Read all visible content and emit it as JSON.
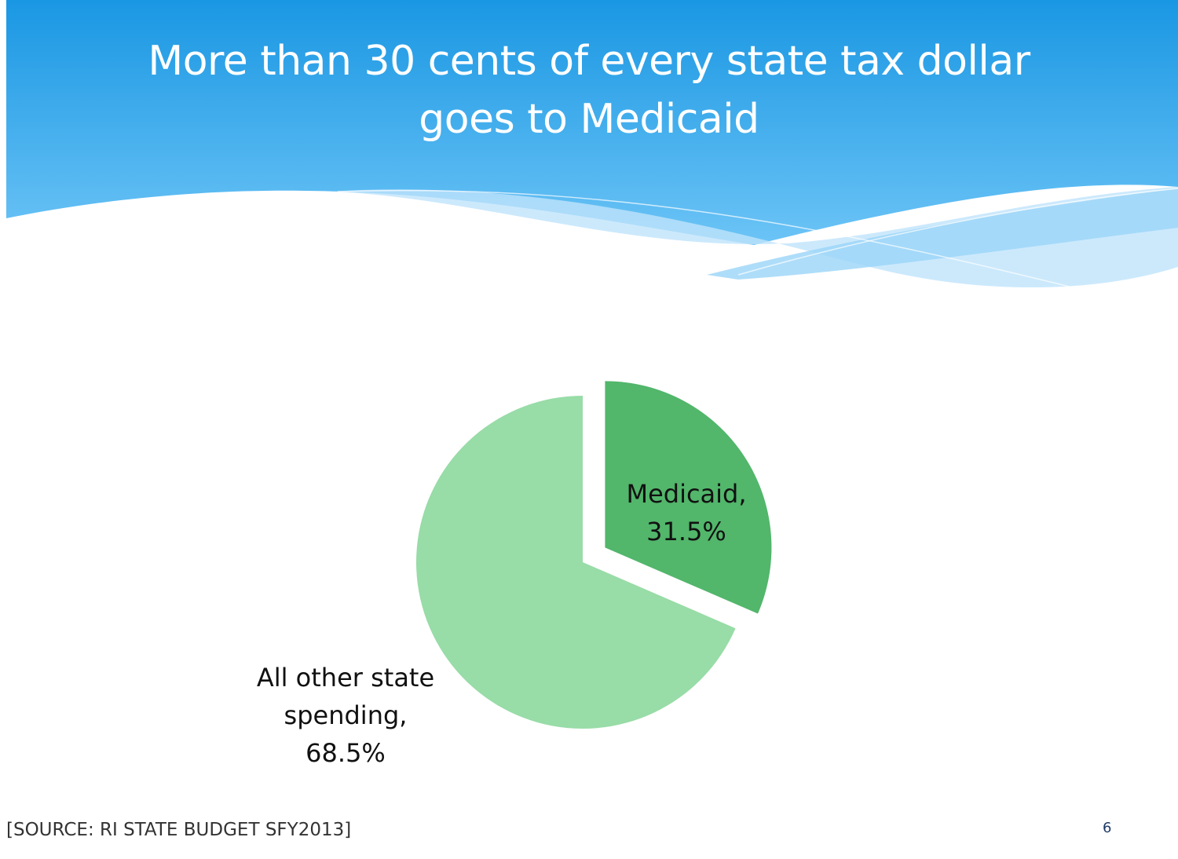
{
  "slide": {
    "title_lines": [
      "More than 30 cents of every state tax dollar",
      "goes to Medicaid"
    ],
    "source": "[SOURCE: RI STATE BUDGET SFY2013]",
    "page_number": "6"
  },
  "colors": {
    "header_top": "#1a97e3",
    "header_bottom": "#6cc4f6",
    "medicaid_slice": "#52b66b",
    "other_slice": "#98dca7"
  },
  "chart_data": {
    "type": "pie",
    "categories": [
      "Medicaid",
      "All other state spending"
    ],
    "values": [
      31.5,
      68.5
    ],
    "unit": "%",
    "exploded": [
      "Medicaid"
    ],
    "labels": [
      {
        "category": "Medicaid",
        "lines": [
          "Medicaid,",
          "31.5%"
        ]
      },
      {
        "category": "All other state spending",
        "lines": [
          "All other state",
          "spending,",
          "68.5%"
        ]
      }
    ]
  }
}
